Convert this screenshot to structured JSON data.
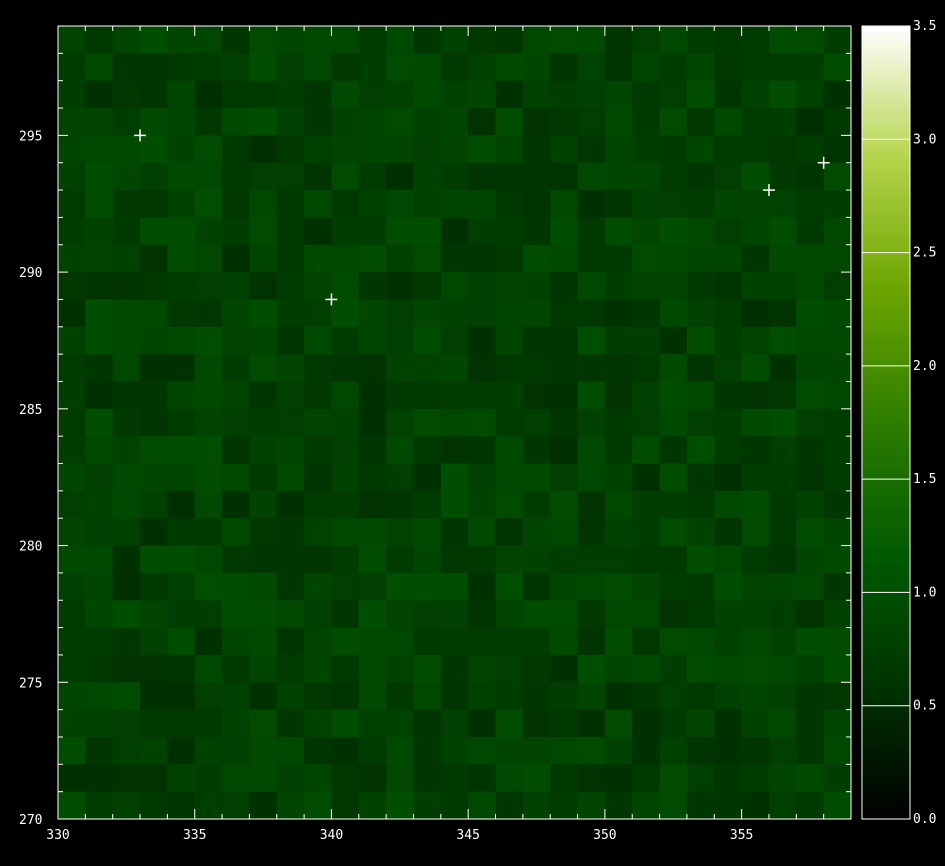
{
  "chart_data": {
    "type": "heatmap",
    "title": "",
    "xlabel": "",
    "ylabel": "",
    "xlim": [
      330,
      359
    ],
    "ylim": [
      270,
      299
    ],
    "x_ticks": [
      "330",
      "335",
      "340",
      "345",
      "350",
      "355"
    ],
    "y_ticks": [
      "270",
      "275",
      "280",
      "285",
      "290",
      "295"
    ],
    "colorbar": {
      "range": [
        0.0,
        3.5
      ],
      "ticks": [
        "0.0",
        "0.5",
        "1.0",
        "1.5",
        "2.0",
        "2.5",
        "3.0",
        "3.5"
      ],
      "colormap": [
        "#000000",
        "#003300",
        "#005a00",
        "#2e7d00",
        "#6aa400",
        "#b4d44a",
        "#ffffff"
      ]
    },
    "cells_note_values": "approximate pixel values",
    "markers": [
      {
        "x": 333,
        "y": 295
      },
      {
        "x": 340,
        "y": 289
      },
      {
        "x": 356,
        "y": 293
      },
      {
        "x": 358,
        "y": 294
      }
    ],
    "marker_symbol": "+"
  }
}
